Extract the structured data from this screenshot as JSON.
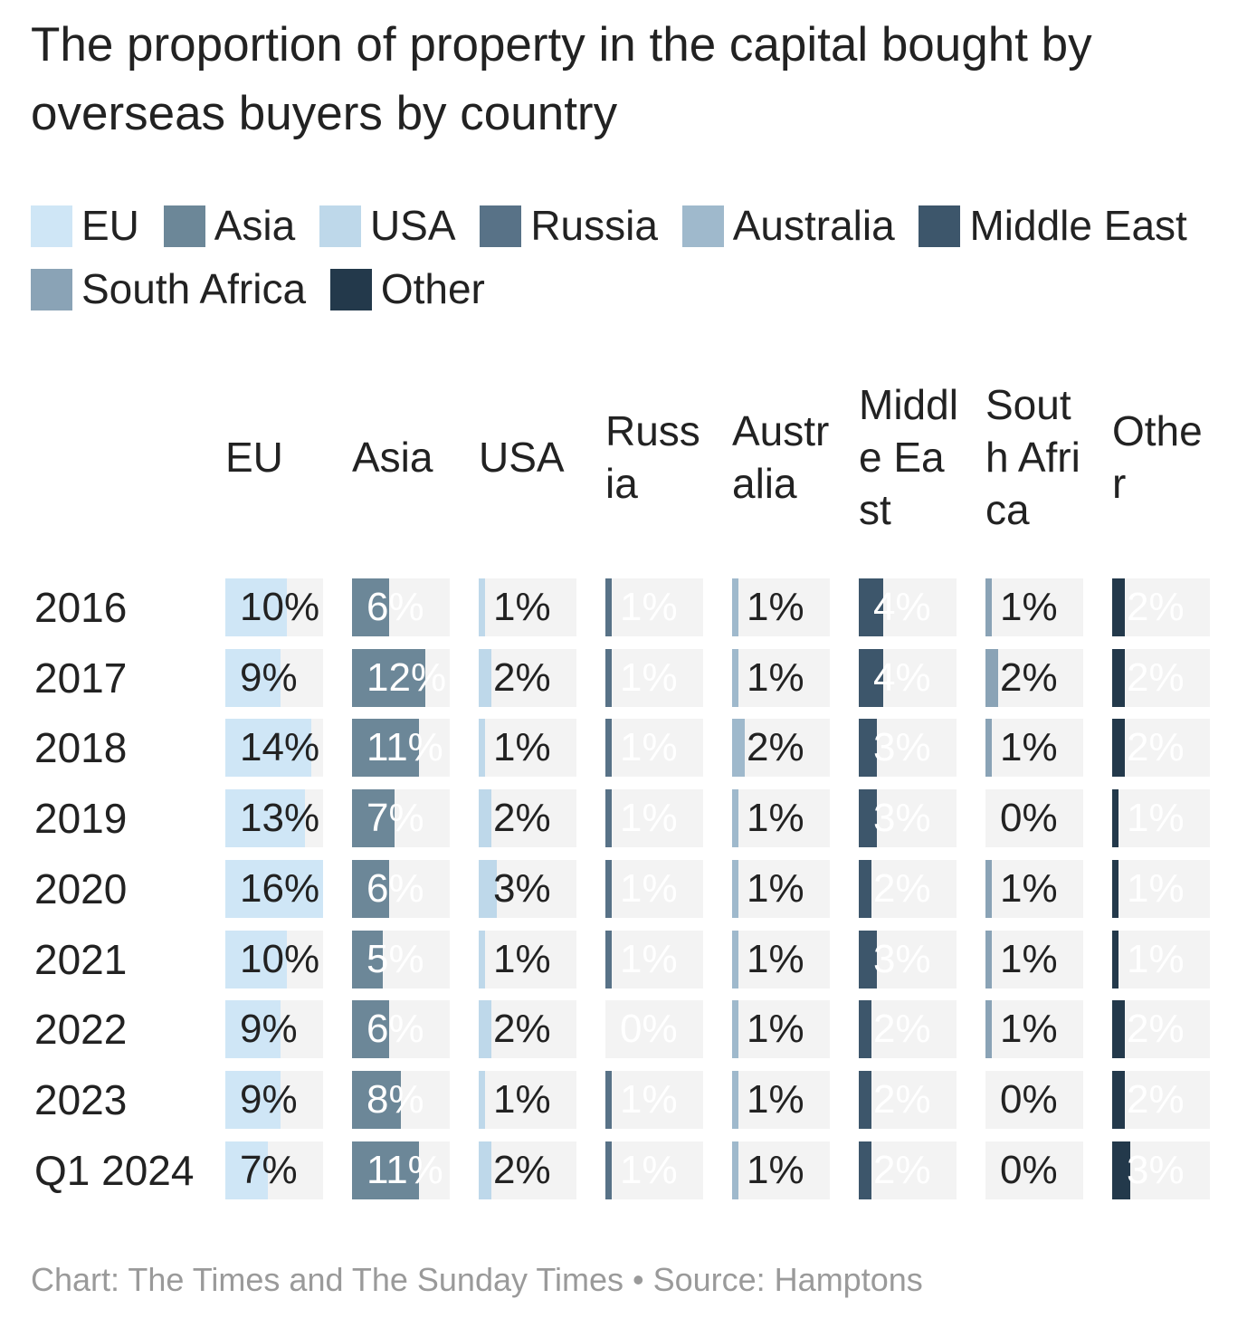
{
  "chart_data": {
    "type": "table",
    "title": "The proportion of property in the capital bought by overseas buyers by country",
    "source": "Chart: The Times and The Sunday Times • Source: Hamptons",
    "max_value": 16,
    "columns": [
      {
        "name": "EU",
        "color": "#cfe6f6",
        "text_color": "#222222"
      },
      {
        "name": "Asia",
        "color": "#6c8798",
        "text_color": "#ffffff"
      },
      {
        "name": "USA",
        "color": "#bed8ea",
        "text_color": "#222222"
      },
      {
        "name": "Russia",
        "color": "#587287",
        "text_color": "#ffffff"
      },
      {
        "name": "Australia",
        "color": "#9fb9cc",
        "text_color": "#222222"
      },
      {
        "name": "Middle East",
        "color": "#3d566b",
        "text_color": "#ffffff"
      },
      {
        "name": "South Africa",
        "color": "#8aa3b6",
        "text_color": "#222222"
      },
      {
        "name": "Other",
        "color": "#23394b",
        "text_color": "#ffffff"
      }
    ],
    "rows": [
      {
        "label": "2016",
        "values": [
          10,
          6,
          1,
          1,
          1,
          4,
          1,
          2
        ]
      },
      {
        "label": "2017",
        "values": [
          9,
          12,
          2,
          1,
          1,
          4,
          2,
          2
        ]
      },
      {
        "label": "2018",
        "values": [
          14,
          11,
          1,
          1,
          2,
          3,
          1,
          2
        ]
      },
      {
        "label": "2019",
        "values": [
          13,
          7,
          2,
          1,
          1,
          3,
          0,
          1
        ]
      },
      {
        "label": "2020",
        "values": [
          16,
          6,
          3,
          1,
          1,
          2,
          1,
          1
        ]
      },
      {
        "label": "2021",
        "values": [
          10,
          5,
          1,
          1,
          1,
          3,
          1,
          1
        ]
      },
      {
        "label": "2022",
        "values": [
          9,
          6,
          2,
          0,
          1,
          2,
          1,
          2
        ]
      },
      {
        "label": "2023",
        "values": [
          9,
          8,
          1,
          1,
          1,
          2,
          0,
          2
        ]
      },
      {
        "label": "Q1 2024",
        "values": [
          7,
          11,
          2,
          1,
          1,
          2,
          0,
          3
        ]
      }
    ]
  }
}
